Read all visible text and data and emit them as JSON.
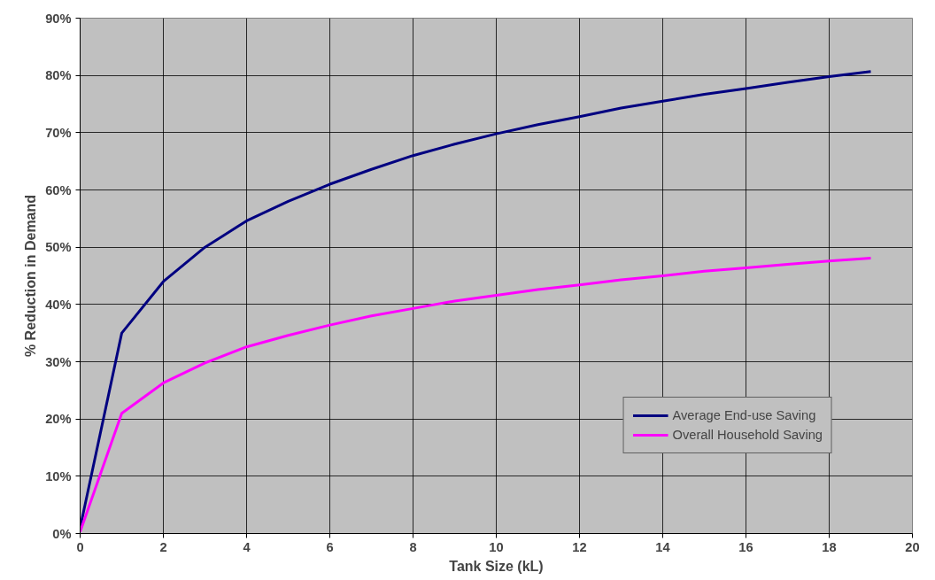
{
  "chart_data": {
    "type": "line",
    "xlabel": "Tank Size (kL)",
    "ylabel": "% Reduction in Demand",
    "x": [
      0,
      1,
      2,
      3,
      4,
      5,
      6,
      7,
      8,
      9,
      10,
      11,
      12,
      13,
      14,
      15,
      16,
      17,
      18,
      19
    ],
    "series": [
      {
        "name": "Average End-use Saving",
        "color": "#000080",
        "values": [
          1,
          35,
          44,
          50,
          54.6,
          58,
          61,
          63.6,
          66,
          68,
          69.8,
          71.4,
          72.8,
          74.3,
          75.5,
          76.7,
          77.7,
          78.8,
          79.8,
          80.7
        ]
      },
      {
        "name": "Overall Household Saving",
        "color": "#ff00ff",
        "values": [
          0.3,
          21,
          26.3,
          29.8,
          32.6,
          34.6,
          36.4,
          38,
          39.3,
          40.6,
          41.6,
          42.6,
          43.4,
          44.3,
          45,
          45.8,
          46.4,
          47,
          47.6,
          48.1
        ]
      }
    ],
    "xlim": [
      0,
      20
    ],
    "xticks": [
      0,
      2,
      4,
      6,
      8,
      10,
      12,
      14,
      16,
      18,
      20
    ],
    "ylim": [
      0,
      90
    ],
    "yticks": [
      {
        "value": 0,
        "label": "0%"
      },
      {
        "value": 10,
        "label": "10%"
      },
      {
        "value": 20,
        "label": "20%"
      },
      {
        "value": 30,
        "label": "30%"
      },
      {
        "value": 40,
        "label": "40%"
      },
      {
        "value": 50,
        "label": "50%"
      },
      {
        "value": 60,
        "label": "60%"
      },
      {
        "value": 70,
        "label": "70%"
      },
      {
        "value": 80,
        "label": "80%"
      },
      {
        "value": 90,
        "label": "90%"
      }
    ],
    "grid": true,
    "legend": "bottom right",
    "marker": "none",
    "line_style": "solid"
  }
}
